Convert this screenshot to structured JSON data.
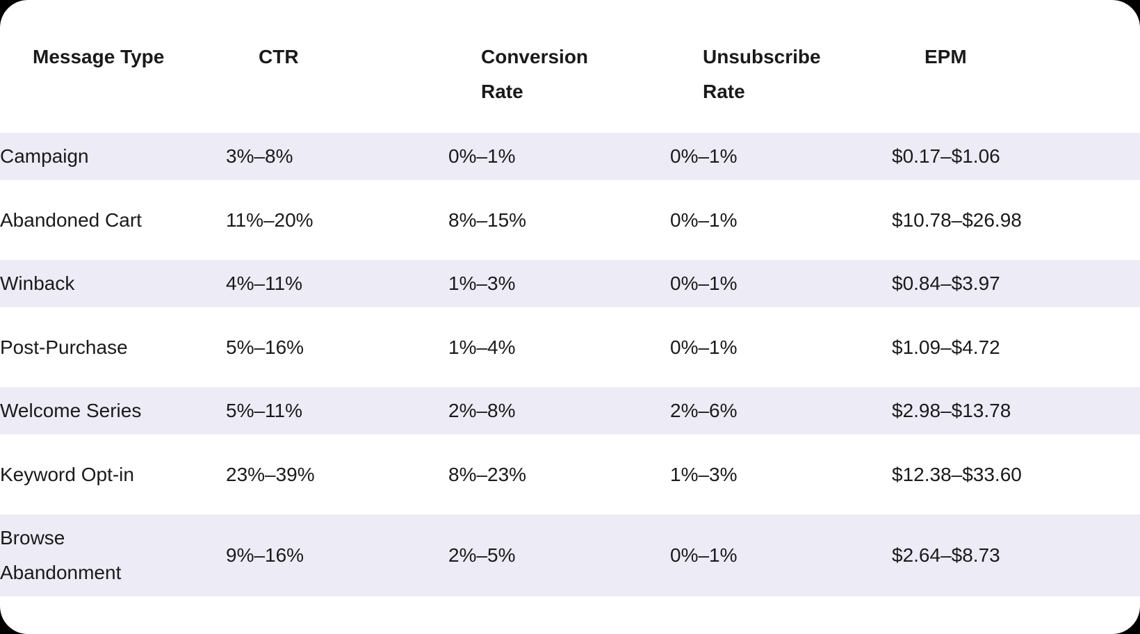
{
  "colors": {
    "page_background": "#000000",
    "card_background": "#FFFFFF",
    "row_stripe": "#EDEBF5",
    "text": "#1A1A1A"
  },
  "table": {
    "columns": [
      {
        "label": "Message Type"
      },
      {
        "label": "CTR"
      },
      {
        "label": "Conversion Rate"
      },
      {
        "label": "Unsubscribe Rate"
      },
      {
        "label": "EPM"
      }
    ],
    "rows": [
      {
        "shaded": true,
        "cells": [
          "Campaign",
          "3%–8%",
          "0%–1%",
          "0%–1%",
          "$0.17–$1.06"
        ]
      },
      {
        "shaded": false,
        "cells": [
          "Abandoned Cart",
          "11%–20%",
          "8%–15%",
          "0%–1%",
          "$10.78–$26.98"
        ]
      },
      {
        "shaded": true,
        "cells": [
          "Winback",
          "4%–11%",
          "1%–3%",
          "0%–1%",
          "$0.84–$3.97"
        ]
      },
      {
        "shaded": false,
        "cells": [
          "Post-Purchase",
          "5%–16%",
          "1%–4%",
          "0%–1%",
          "$1.09–$4.72"
        ]
      },
      {
        "shaded": true,
        "cells": [
          "Welcome Series",
          "5%–11%",
          "2%–8%",
          "2%–6%",
          "$2.98–$13.78"
        ]
      },
      {
        "shaded": false,
        "cells": [
          "Keyword Opt-in",
          "23%–39%",
          "8%–23%",
          "1%–3%",
          "$12.38–$33.60"
        ]
      },
      {
        "shaded": true,
        "cells": [
          "Browse Abandonment",
          "9%–16%",
          "2%–5%",
          "0%–1%",
          "$2.64–$8.73"
        ]
      }
    ]
  },
  "chart_data": {
    "type": "table",
    "title": "",
    "columns": [
      "Message Type",
      "CTR",
      "Conversion Rate",
      "Unsubscribe Rate",
      "EPM"
    ],
    "rows": [
      [
        "Campaign",
        "3%–8%",
        "0%–1%",
        "0%–1%",
        "$0.17–$1.06"
      ],
      [
        "Abandoned Cart",
        "11%–20%",
        "8%–15%",
        "0%–1%",
        "$10.78–$26.98"
      ],
      [
        "Winback",
        "4%–11%",
        "1%–3%",
        "0%–1%",
        "$0.84–$3.97"
      ],
      [
        "Post-Purchase",
        "5%–16%",
        "1%–4%",
        "0%–1%",
        "$1.09–$4.72"
      ],
      [
        "Welcome Series",
        "5%–11%",
        "2%–8%",
        "2%–6%",
        "$2.98–$13.78"
      ],
      [
        "Keyword Opt-in",
        "23%–39%",
        "8%–23%",
        "1%–3%",
        "$12.38–$33.60"
      ],
      [
        "Browse Abandonment",
        "9%–16%",
        "2%–5%",
        "0%–1%",
        "$2.64–$8.73"
      ]
    ],
    "layout_hints": {
      "zebra_striping": "rows 1,3,5,7 shaded lavender",
      "header_position": "top",
      "grid": "off"
    }
  }
}
